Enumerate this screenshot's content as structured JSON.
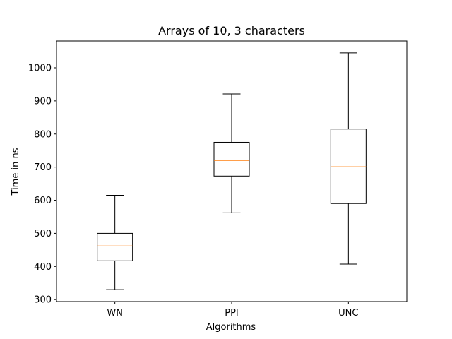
{
  "chart_data": {
    "type": "box",
    "title": "Arrays of 10, 3 characters",
    "xlabel": "Algorithms",
    "ylabel": "Time in ns",
    "categories": [
      "WN",
      "PPI",
      "UNC"
    ],
    "boxes": [
      {
        "label": "WN",
        "whisker_low": 330,
        "q1": 417,
        "median": 462,
        "q3": 500,
        "whisker_high": 615
      },
      {
        "label": "PPI",
        "whisker_low": 562,
        "q1": 673,
        "median": 720,
        "q3": 775,
        "whisker_high": 921
      },
      {
        "label": "UNC",
        "whisker_low": 407,
        "q1": 590,
        "median": 701,
        "q3": 815,
        "whisker_high": 1045
      }
    ],
    "ylim": [
      294,
      1081
    ],
    "yticks": [
      300,
      400,
      500,
      600,
      700,
      800,
      900,
      1000
    ],
    "ytick_labels": [
      "300",
      "400",
      "500",
      "600",
      "700",
      "800",
      "900",
      "1000"
    ],
    "grid": false,
    "colors": {
      "box": "#000000",
      "median": "#ff7f0e"
    }
  }
}
